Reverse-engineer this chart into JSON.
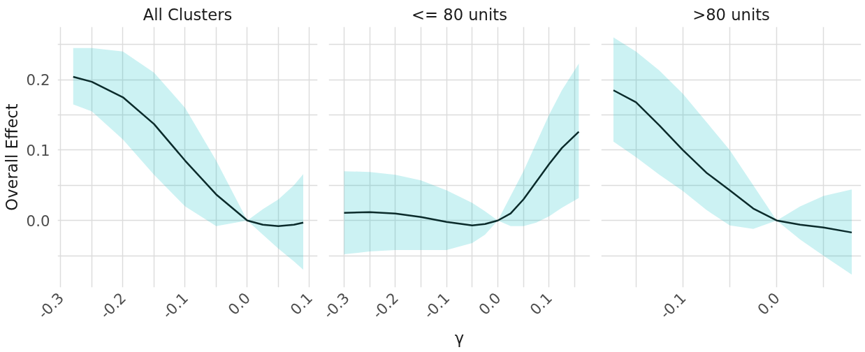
{
  "chart_data": [
    {
      "type": "line",
      "title": "All Clusters",
      "ylabel": "Overall Effect",
      "grid": true,
      "xlim": [
        -0.305,
        0.113
      ],
      "ylim": [
        -0.095,
        0.275
      ],
      "xticks": [
        -0.3,
        {
          "value": -0.25,
          "label": null
        },
        -0.2,
        {
          "value": -0.15,
          "label": null
        },
        -0.1,
        {
          "value": -0.05,
          "label": null
        },
        {
          "value": 0.0,
          "label": "0.0"
        },
        {
          "value": 0.05,
          "label": null
        },
        0.1
      ],
      "yticks": [
        {
          "value": -0.05,
          "label": null
        },
        {
          "value": 0.0,
          "label": "0.0"
        },
        {
          "value": 0.05,
          "label": null
        },
        0.1,
        {
          "value": 0.15,
          "label": null
        },
        0.2,
        {
          "value": 0.25,
          "label": null
        }
      ],
      "series": [
        {
          "color": "#0b2b2b",
          "x": [
            -0.28,
            -0.25,
            -0.2,
            -0.15,
            -0.1,
            -0.05,
            0.0,
            0.025,
            0.05,
            0.075,
            0.09
          ],
          "values": [
            0.204,
            0.197,
            0.175,
            0.137,
            0.085,
            0.037,
            0.0,
            -0.006,
            -0.008,
            -0.006,
            -0.003
          ],
          "upper": [
            0.245,
            0.245,
            0.24,
            0.21,
            0.16,
            0.085,
            0.0,
            0.016,
            0.03,
            0.05,
            0.066
          ],
          "lower": [
            0.165,
            0.155,
            0.115,
            0.065,
            0.02,
            -0.008,
            0.0,
            -0.02,
            -0.04,
            -0.058,
            -0.07
          ]
        }
      ]
    },
    {
      "type": "line",
      "title": "<= 80 units",
      "xlabel": "γ",
      "grid": true,
      "tick_labels": "x",
      "xlim": [
        -0.33,
        0.18
      ],
      "ylim": [
        -0.095,
        0.275
      ],
      "xticks": [
        -0.3,
        {
          "value": -0.25,
          "label": null
        },
        -0.2,
        {
          "value": -0.15,
          "label": null
        },
        -0.1,
        {
          "value": -0.05,
          "label": null
        },
        {
          "value": 0.0,
          "label": "0.0"
        },
        {
          "value": 0.05,
          "label": null
        },
        0.1,
        {
          "value": 0.15,
          "label": null
        }
      ],
      "yticks": [
        {
          "value": -0.05,
          "label": null
        },
        0.0,
        {
          "value": 0.05,
          "label": null
        },
        0.1,
        {
          "value": 0.15,
          "label": null
        },
        0.2,
        {
          "value": 0.25,
          "label": null
        }
      ],
      "series": [
        {
          "color": "#0b2b2b",
          "x": [
            -0.3,
            -0.25,
            -0.2,
            -0.15,
            -0.1,
            -0.05,
            -0.025,
            0.0,
            0.025,
            0.05,
            0.075,
            0.1,
            0.125,
            0.158
          ],
          "values": [
            0.011,
            0.012,
            0.01,
            0.005,
            -0.002,
            -0.007,
            -0.005,
            0.0,
            0.01,
            0.03,
            0.055,
            0.08,
            0.103,
            0.126
          ],
          "upper": [
            0.07,
            0.069,
            0.065,
            0.057,
            0.043,
            0.025,
            0.013,
            0.0,
            0.035,
            0.07,
            0.11,
            0.15,
            0.185,
            0.223
          ],
          "lower": [
            -0.048,
            -0.044,
            -0.042,
            -0.042,
            -0.042,
            -0.032,
            -0.02,
            0.0,
            -0.008,
            -0.008,
            -0.003,
            0.006,
            0.018,
            0.032
          ]
        }
      ]
    },
    {
      "type": "line",
      "title": ">80 units",
      "grid": true,
      "tick_labels": "x",
      "xlim": [
        -0.187,
        0.09
      ],
      "ylim": [
        -0.095,
        0.275
      ],
      "xticks": [
        {
          "value": -0.15,
          "label": null
        },
        -0.1,
        {
          "value": -0.05,
          "label": null
        },
        {
          "value": 0.0,
          "label": "0.0"
        },
        {
          "value": 0.05,
          "label": null
        }
      ],
      "yticks": [
        {
          "value": -0.05,
          "label": null
        },
        0.0,
        {
          "value": 0.05,
          "label": null
        },
        0.1,
        {
          "value": 0.15,
          "label": null
        },
        0.2,
        {
          "value": 0.25,
          "label": null
        }
      ],
      "series": [
        {
          "color": "#0b2b2b",
          "x": [
            -0.174,
            -0.15,
            -0.125,
            -0.1,
            -0.075,
            -0.05,
            -0.025,
            0.0,
            0.025,
            0.05,
            0.08
          ],
          "values": [
            0.185,
            0.168,
            0.135,
            0.1,
            0.068,
            0.043,
            0.017,
            0.0,
            -0.006,
            -0.01,
            -0.017
          ],
          "upper": [
            0.26,
            0.24,
            0.213,
            0.18,
            0.14,
            0.1,
            0.05,
            0.0,
            0.02,
            0.035,
            0.044
          ],
          "lower": [
            0.112,
            0.09,
            0.065,
            0.042,
            0.015,
            -0.007,
            -0.012,
            0.0,
            -0.027,
            -0.05,
            -0.077
          ]
        }
      ]
    }
  ]
}
